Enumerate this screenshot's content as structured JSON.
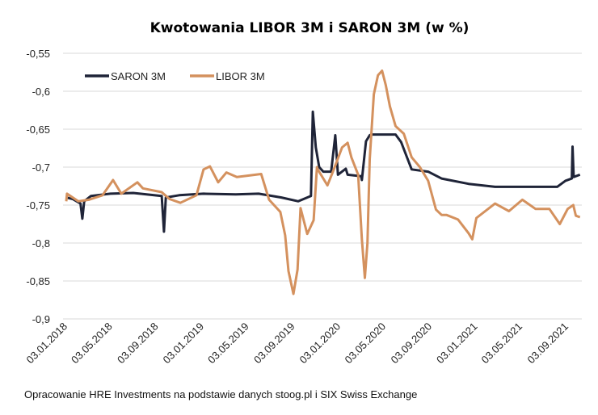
{
  "chart_data": {
    "type": "line",
    "title": "Kwotowania LIBOR 3M i SARON 3M (w %)",
    "xlabel": "",
    "ylabel": "",
    "ylim": [
      -0.9,
      -0.55
    ],
    "yticks": [
      -0.55,
      -0.6,
      -0.65,
      -0.7,
      -0.75,
      -0.8,
      -0.85,
      -0.9
    ],
    "ytick_labels": [
      "-0,55",
      "-0,6",
      "-0,65",
      "-0,7",
      "-0,75",
      "-0,8",
      "-0,85",
      "-0,9"
    ],
    "xticks": [
      "2018-01-03",
      "2018-05-03",
      "2018-09-03",
      "2019-01-03",
      "2019-05-03",
      "2019-09-03",
      "2020-01-03",
      "2020-05-03",
      "2020-09-03",
      "2021-01-03",
      "2021-05-03",
      "2021-09-03"
    ],
    "xtick_labels": [
      "03.01.2018",
      "03.05.2018",
      "03.09.2018",
      "03.01.2019",
      "03.05.2019",
      "03.09.2019",
      "03.01.2020",
      "03.05.2020",
      "03.09.2020",
      "03.01.2021",
      "03.05.2021",
      "03.09.2021"
    ],
    "grid": "horizontal",
    "legend_placement": "top-left",
    "series": [
      {
        "name": "SARON 3M",
        "color": "#1f2438",
        "points": [
          [
            "2018-01-03",
            -0.74
          ],
          [
            "2018-01-20",
            -0.742
          ],
          [
            "2018-02-10",
            -0.748
          ],
          [
            "2018-02-15",
            -0.768
          ],
          [
            "2018-02-20",
            -0.745
          ],
          [
            "2018-03-10",
            -0.738
          ],
          [
            "2018-05-01",
            -0.735
          ],
          [
            "2018-07-01",
            -0.734
          ],
          [
            "2018-09-15",
            -0.738
          ],
          [
            "2018-09-21",
            -0.785
          ],
          [
            "2018-09-26",
            -0.74
          ],
          [
            "2018-11-01",
            -0.737
          ],
          [
            "2019-01-05",
            -0.735
          ],
          [
            "2019-04-01",
            -0.736
          ],
          [
            "2019-06-01",
            -0.735
          ],
          [
            "2019-08-01",
            -0.74
          ],
          [
            "2019-09-15",
            -0.745
          ],
          [
            "2019-10-19",
            -0.738
          ],
          [
            "2019-10-24",
            -0.627
          ],
          [
            "2019-11-01",
            -0.674
          ],
          [
            "2019-11-10",
            -0.7
          ],
          [
            "2019-11-21",
            -0.706
          ],
          [
            "2019-12-12",
            -0.706
          ],
          [
            "2019-12-23",
            -0.658
          ],
          [
            "2019-12-30",
            -0.71
          ],
          [
            "2020-01-20",
            -0.702
          ],
          [
            "2020-01-25",
            -0.71
          ],
          [
            "2020-03-01",
            -0.712
          ],
          [
            "2020-03-03",
            -0.717
          ],
          [
            "2020-03-14",
            -0.666
          ],
          [
            "2020-03-24",
            -0.658
          ],
          [
            "2020-03-28",
            -0.657
          ],
          [
            "2020-06-01",
            -0.657
          ],
          [
            "2020-06-16",
            -0.667
          ],
          [
            "2020-07-14",
            -0.703
          ],
          [
            "2020-08-27",
            -0.706
          ],
          [
            "2020-10-02",
            -0.715
          ],
          [
            "2020-12-13",
            -0.722
          ],
          [
            "2021-02-22",
            -0.726
          ],
          [
            "2021-06-10",
            -0.726
          ],
          [
            "2021-08-07",
            -0.726
          ],
          [
            "2021-08-29",
            -0.718
          ],
          [
            "2021-09-15",
            -0.715
          ],
          [
            "2021-09-17",
            -0.673
          ],
          [
            "2021-09-20",
            -0.713
          ],
          [
            "2021-10-07",
            -0.71
          ]
        ]
      },
      {
        "name": "LIBOR 3M",
        "color": "#d4915e",
        "points": [
          [
            "2018-01-03",
            -0.745
          ],
          [
            "2018-01-05",
            -0.735
          ],
          [
            "2018-02-04",
            -0.745
          ],
          [
            "2018-03-04",
            -0.743
          ],
          [
            "2018-04-10",
            -0.737
          ],
          [
            "2018-05-08",
            -0.717
          ],
          [
            "2018-05-30",
            -0.735
          ],
          [
            "2018-07-12",
            -0.72
          ],
          [
            "2018-07-27",
            -0.728
          ],
          [
            "2018-09-15",
            -0.733
          ],
          [
            "2018-10-06",
            -0.742
          ],
          [
            "2018-11-04",
            -0.747
          ],
          [
            "2018-12-17",
            -0.737
          ],
          [
            "2019-01-05",
            -0.703
          ],
          [
            "2019-01-22",
            -0.699
          ],
          [
            "2019-02-13",
            -0.72
          ],
          [
            "2019-03-07",
            -0.707
          ],
          [
            "2019-04-04",
            -0.713
          ],
          [
            "2019-06-08",
            -0.709
          ],
          [
            "2019-06-29",
            -0.743
          ],
          [
            "2019-07-29",
            -0.759
          ],
          [
            "2019-08-11",
            -0.79
          ],
          [
            "2019-08-20",
            -0.837
          ],
          [
            "2019-09-02",
            -0.867
          ],
          [
            "2019-09-13",
            -0.835
          ],
          [
            "2019-09-21",
            -0.754
          ],
          [
            "2019-10-09",
            -0.788
          ],
          [
            "2019-10-26",
            -0.77
          ],
          [
            "2019-11-04",
            -0.7
          ],
          [
            "2019-11-06",
            -0.703
          ],
          [
            "2019-12-02",
            -0.724
          ],
          [
            "2019-12-19",
            -0.703
          ],
          [
            "2020-01-10",
            -0.674
          ],
          [
            "2020-01-25",
            -0.668
          ],
          [
            "2020-02-04",
            -0.687
          ],
          [
            "2020-02-22",
            -0.71
          ],
          [
            "2020-03-03",
            -0.795
          ],
          [
            "2020-03-11",
            -0.846
          ],
          [
            "2020-03-18",
            -0.8
          ],
          [
            "2020-03-24",
            -0.69
          ],
          [
            "2020-04-04",
            -0.604
          ],
          [
            "2020-04-15",
            -0.579
          ],
          [
            "2020-04-26",
            -0.573
          ],
          [
            "2020-05-06",
            -0.592
          ],
          [
            "2020-05-17",
            -0.62
          ],
          [
            "2020-06-01",
            -0.646
          ],
          [
            "2020-06-23",
            -0.656
          ],
          [
            "2020-07-14",
            -0.687
          ],
          [
            "2020-08-05",
            -0.7
          ],
          [
            "2020-08-27",
            -0.718
          ],
          [
            "2020-09-17",
            -0.756
          ],
          [
            "2020-10-02",
            -0.763
          ],
          [
            "2020-10-15",
            -0.763
          ],
          [
            "2020-11-15",
            -0.769
          ],
          [
            "2020-12-13",
            -0.787
          ],
          [
            "2020-12-23",
            -0.795
          ],
          [
            "2021-01-03",
            -0.767
          ],
          [
            "2021-02-22",
            -0.748
          ],
          [
            "2021-03-31",
            -0.758
          ],
          [
            "2021-05-06",
            -0.743
          ],
          [
            "2021-06-10",
            -0.755
          ],
          [
            "2021-07-17",
            -0.755
          ],
          [
            "2021-08-14",
            -0.775
          ],
          [
            "2021-09-04",
            -0.755
          ],
          [
            "2021-09-19",
            -0.75
          ],
          [
            "2021-09-26",
            -0.764
          ],
          [
            "2021-10-07",
            -0.766
          ]
        ]
      }
    ]
  },
  "source": "Opracowanie HRE Investments na podstawie danych stoog.pl i SIX Swiss Exchange"
}
